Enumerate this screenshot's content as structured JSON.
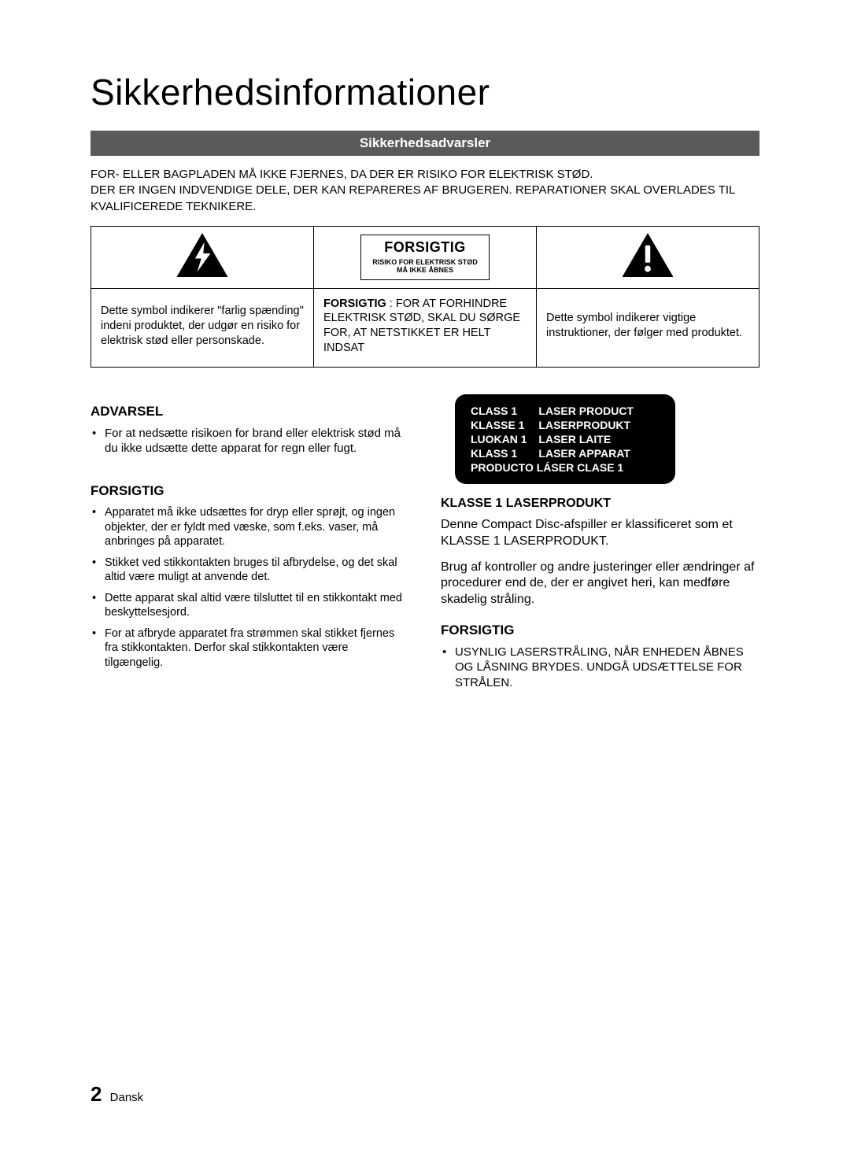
{
  "title": "Sikkerhedsinformationer",
  "sectionBar": "Sikkerhedsadvarsler",
  "intro": "FOR- ELLER BAGPLADEN MÅ IKKE FJERNES, DA DER ER RISIKO FOR ELEKTRISK STØD.\nDER ER INGEN INDVENDIGE DELE, DER KAN REPARERES AF BRUGEREN. REPARATIONER SKAL OVERLADES TIL KVALIFICEREDE TEKNIKERE.",
  "warnTable": {
    "midTopBig": "FORSIGTIG",
    "midTopSmall": "RISIKO FOR ELEKTRISK STØD\nMÅ IKKE ÅBNES",
    "leftDesc": "Dette symbol indikerer \"farlig spænding\" indeni produktet, der udgør en risiko for elektrisk stød eller personskade.",
    "midDescLabel": "FORSIGTIG",
    "midDescRest": " : FOR AT FORHINDRE ELEKTRISK STØD, SKAL DU SØRGE FOR, AT NETSTIKKET ER HELT INDSAT",
    "rightDesc": "Dette symbol indikerer vigtige instruktioner, der følger med produktet."
  },
  "left": {
    "advarselHead": "ADVARSEL",
    "advarselBullet": "For at nedsætte risikoen for brand eller elektrisk stød må du ikke udsætte dette apparat for regn eller fugt.",
    "forsigtigHead": "FORSIGTIG",
    "forsigtigBullets": [
      "Apparatet må ikke udsættes for dryp eller sprøjt, og ingen objekter, der er fyldt med væske, som f.eks. vaser, må anbringes på apparatet.",
      "Stikket ved stikkontakten bruges til afbrydelse, og det skal altid være muligt at anvende det.",
      "Dette apparat skal altid være tilsluttet til en stikkontakt med beskyttelsesjord.",
      "For at afbryde apparatet fra strømmen skal stikket fjernes fra stikkontakten. Derfor skal stikkontakten være tilgængelig."
    ]
  },
  "right": {
    "laserRows": [
      [
        "CLASS 1",
        "LASER PRODUCT"
      ],
      [
        "KLASSE 1",
        "LASERPRODUKT"
      ],
      [
        "LUOKAN 1",
        "LASER LAITE"
      ],
      [
        "KLASS 1",
        "LASER APPARAT"
      ]
    ],
    "laserLast": "PRODUCTO LÁSER CLASE 1",
    "klasseHead": "KLASSE 1 LASERPRODUKT",
    "klasseP1": "Denne Compact Disc-afspiller er klassificeret som et KLASSE 1 LASERPRODUKT.",
    "klasseP2": "Brug af kontroller og andre justeringer eller ændringer af procedurer end de, der er angivet heri, kan medføre skadelig stråling.",
    "forsigtigHead": "FORSIGTIG",
    "forsigtigBullet": "USYNLIG LASERSTRÅLING, NÅR ENHEDEN ÅBNES OG LÅSNING BRYDES. UNDGÅ UDSÆTTELSE FOR STRÅLEN."
  },
  "footer": {
    "pageNum": "2",
    "lang": "Dansk"
  }
}
